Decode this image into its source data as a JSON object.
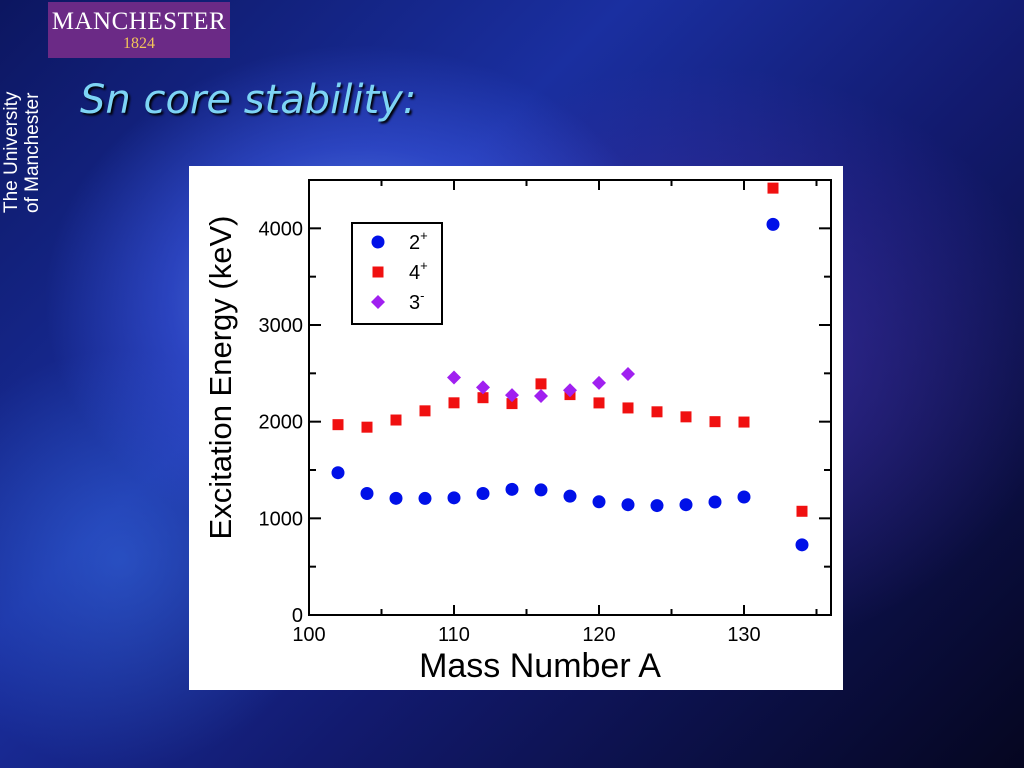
{
  "slide": {
    "title": "Sn core stability:",
    "logo_name": "MANCHESTER",
    "logo_year": "1824",
    "vertical_line1": "The University",
    "vertical_line2": "of Manchester"
  },
  "chart_data": {
    "type": "scatter",
    "xlabel": "Mass Number A",
    "ylabel": "Excitation Energy (keV)",
    "xlim": [
      100,
      136
    ],
    "ylim": [
      0,
      4500
    ],
    "x_ticks": [
      100,
      110,
      120,
      130
    ],
    "y_ticks": [
      0,
      1000,
      2000,
      3000,
      4000
    ],
    "legend_position": "top-left",
    "series": [
      {
        "name": "2+",
        "label_base": "2",
        "label_sup": "+",
        "marker": "circle",
        "color": "#0010e8",
        "x": [
          102,
          104,
          106,
          108,
          110,
          112,
          114,
          116,
          118,
          120,
          122,
          124,
          126,
          128,
          130,
          132,
          134
        ],
        "y": [
          1472,
          1257,
          1207,
          1206,
          1212,
          1257,
          1300,
          1294,
          1230,
          1171,
          1141,
          1132,
          1141,
          1169,
          1221,
          4041,
          726
        ]
      },
      {
        "name": "4+",
        "label_base": "4",
        "label_sup": "+",
        "marker": "square",
        "color": "#f01010",
        "x": [
          102,
          104,
          106,
          108,
          110,
          112,
          114,
          116,
          118,
          120,
          122,
          124,
          126,
          128,
          130,
          132,
          134
        ],
        "y": [
          1969,
          1943,
          2017,
          2112,
          2195,
          2248,
          2187,
          2391,
          2280,
          2194,
          2142,
          2102,
          2050,
          2000,
          1996,
          4416,
          1073
        ]
      },
      {
        "name": "3-",
        "label_base": "3",
        "label_sup": "-",
        "marker": "diamond",
        "color": "#a020f0",
        "x": [
          110,
          112,
          114,
          116,
          118,
          120,
          122
        ],
        "y": [
          2457,
          2355,
          2275,
          2266,
          2325,
          2401,
          2493
        ]
      }
    ]
  }
}
